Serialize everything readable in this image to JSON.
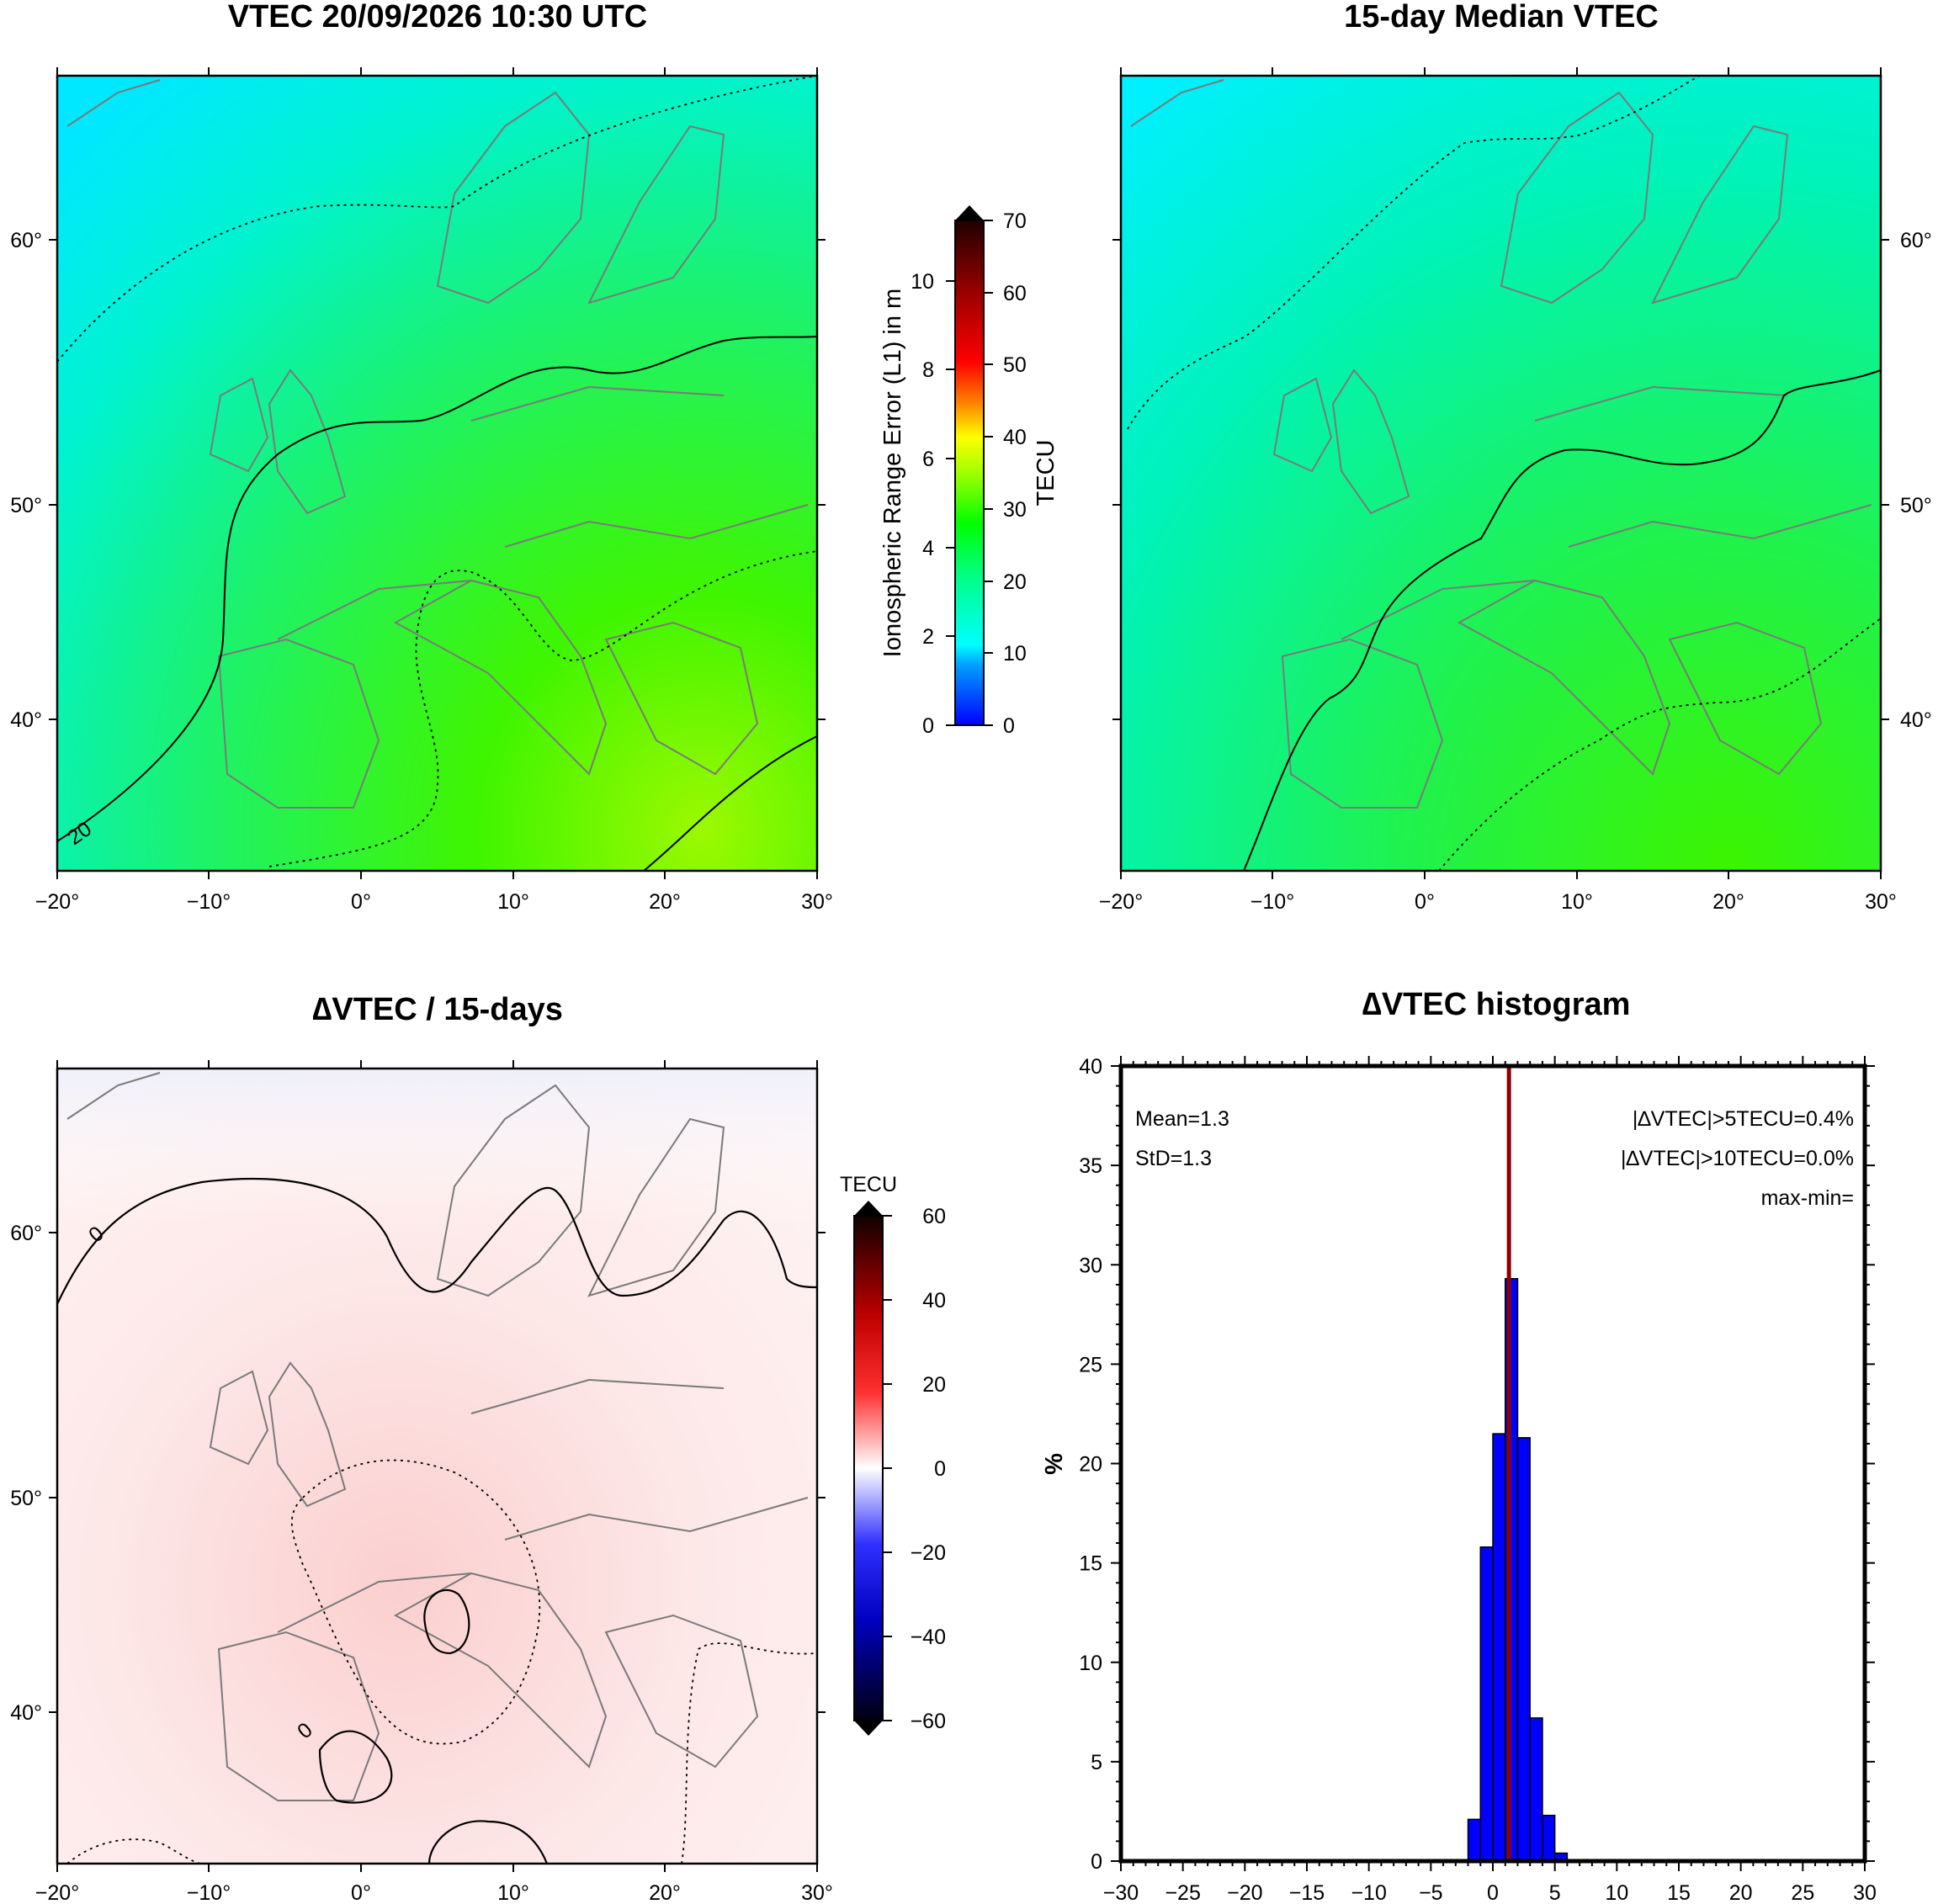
{
  "panels": {
    "vtec": {
      "title": "VTEC 20/09/2026 10:30 UTC",
      "x_ticks": [
        "−20°",
        "−10°",
        "0°",
        "10°",
        "20°",
        "30°"
      ],
      "y_ticks": [
        "40°",
        "50°",
        "60°"
      ],
      "contour_label": "20"
    },
    "median": {
      "title": "15-day Median VTEC",
      "x_ticks": [
        "−20°",
        "−10°",
        "0°",
        "10°",
        "20°",
        "30°"
      ],
      "y_ticks": [
        "40°",
        "50°",
        "60°"
      ]
    },
    "delta": {
      "title": "∆VTEC / 15-days",
      "x_ticks": [
        "−20°",
        "−10°",
        "0°",
        "10°",
        "20°",
        "30°"
      ],
      "y_ticks": [
        "40°",
        "50°",
        "60°"
      ],
      "contour_labels": [
        "0",
        "0"
      ]
    }
  },
  "colorbar_vtec": {
    "label_left": "Ionospheric Range Error (L1) in m",
    "label_right": "TECU",
    "left_ticks": [
      "0",
      "2",
      "4",
      "6",
      "8",
      "10"
    ],
    "right_ticks": [
      "0",
      "10",
      "20",
      "30",
      "40",
      "50",
      "60",
      "70"
    ]
  },
  "colorbar_delta": {
    "label": "TECU",
    "ticks": [
      "60",
      "40",
      "20",
      "0",
      "−20",
      "−40",
      "−60"
    ]
  },
  "chart_data": {
    "type": "bar",
    "title": "∆VTEC histogram",
    "xlabel": "",
    "ylabel": "%",
    "xlim": [
      -30,
      30
    ],
    "ylim": [
      0,
      40
    ],
    "x_tick_labels": [
      "−30",
      "−25",
      "−20",
      "−15",
      "−10",
      "−5",
      "0",
      "5",
      "10",
      "15",
      "20",
      "25",
      "30"
    ],
    "y_tick_labels": [
      "0",
      "5",
      "10",
      "15",
      "20",
      "25",
      "30",
      "35",
      "40"
    ],
    "bins": [
      {
        "x0": -2,
        "x1": -1,
        "value": 2.1
      },
      {
        "x0": -1,
        "x1": 0,
        "value": 15.8
      },
      {
        "x0": 0,
        "x1": 1,
        "value": 21.5
      },
      {
        "x0": 1,
        "x1": 2,
        "value": 29.3
      },
      {
        "x0": 2,
        "x1": 3,
        "value": 21.3
      },
      {
        "x0": 3,
        "x1": 4,
        "value": 7.2
      },
      {
        "x0": 4,
        "x1": 5,
        "value": 2.3
      },
      {
        "x0": 5,
        "x1": 6,
        "value": 0.4
      }
    ],
    "mean_line": 1.3,
    "bar_color": "#0000ff",
    "mean_line_color": "#8b0000",
    "annotations": {
      "mean": "Mean=1.3",
      "std": "StD=1.3",
      "over5": "|∆VTEC|>5TECU=0.4%",
      "over10": "|∆VTEC|>10TECU=0.0%",
      "maxmin": "max-min="
    }
  }
}
